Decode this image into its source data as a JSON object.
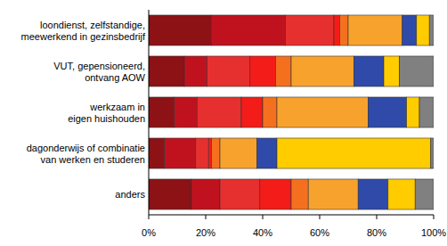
{
  "chart_data": {
    "type": "bar",
    "orientation": "horizontal",
    "stacked": true,
    "grid": false,
    "categories": [
      "loondienst, zelfstandige,\nmeewerkend in gezinsbedrijf",
      "VUT, gepensioneerd,\nontvang AOW",
      "werkzaam in\neigen huishouden",
      "dagonderwijs of combinatie\nvan werken en studeren",
      "anders"
    ],
    "xlim": [
      0,
      100
    ],
    "xticks": [
      {
        "value": 0,
        "label": "0%"
      },
      {
        "value": 20,
        "label": "20%"
      },
      {
        "value": 40,
        "label": "40%"
      },
      {
        "value": 60,
        "label": "60%"
      },
      {
        "value": 80,
        "label": "80%"
      },
      {
        "value": 100,
        "label": "100%"
      }
    ],
    "series": [
      {
        "color": "#8c1216",
        "values": [
          22,
          12.5,
          9,
          5.5,
          15
        ]
      },
      {
        "color": "#c0121e",
        "values": [
          26,
          8,
          8,
          11,
          10
        ]
      },
      {
        "color": "#e6302f",
        "values": [
          17,
          15,
          15.5,
          4.5,
          14
        ]
      },
      {
        "color": "#f41c18",
        "values": [
          2,
          9,
          7.5,
          1,
          11
        ]
      },
      {
        "color": "#f4701e",
        "values": [
          3,
          5.5,
          5,
          3,
          6
        ]
      },
      {
        "color": "#f8a22e",
        "values": [
          19,
          22,
          32,
          13,
          17.5
        ]
      },
      {
        "color": "#2f4aa8",
        "values": [
          5,
          10.5,
          13.5,
          7,
          10.5
        ]
      },
      {
        "color": "#ffcc00",
        "values": [
          4.5,
          5.5,
          4.5,
          54,
          9.5
        ]
      },
      {
        "color": "#808080",
        "values": [
          1.5,
          12,
          5,
          1,
          6.5
        ]
      }
    ]
  }
}
